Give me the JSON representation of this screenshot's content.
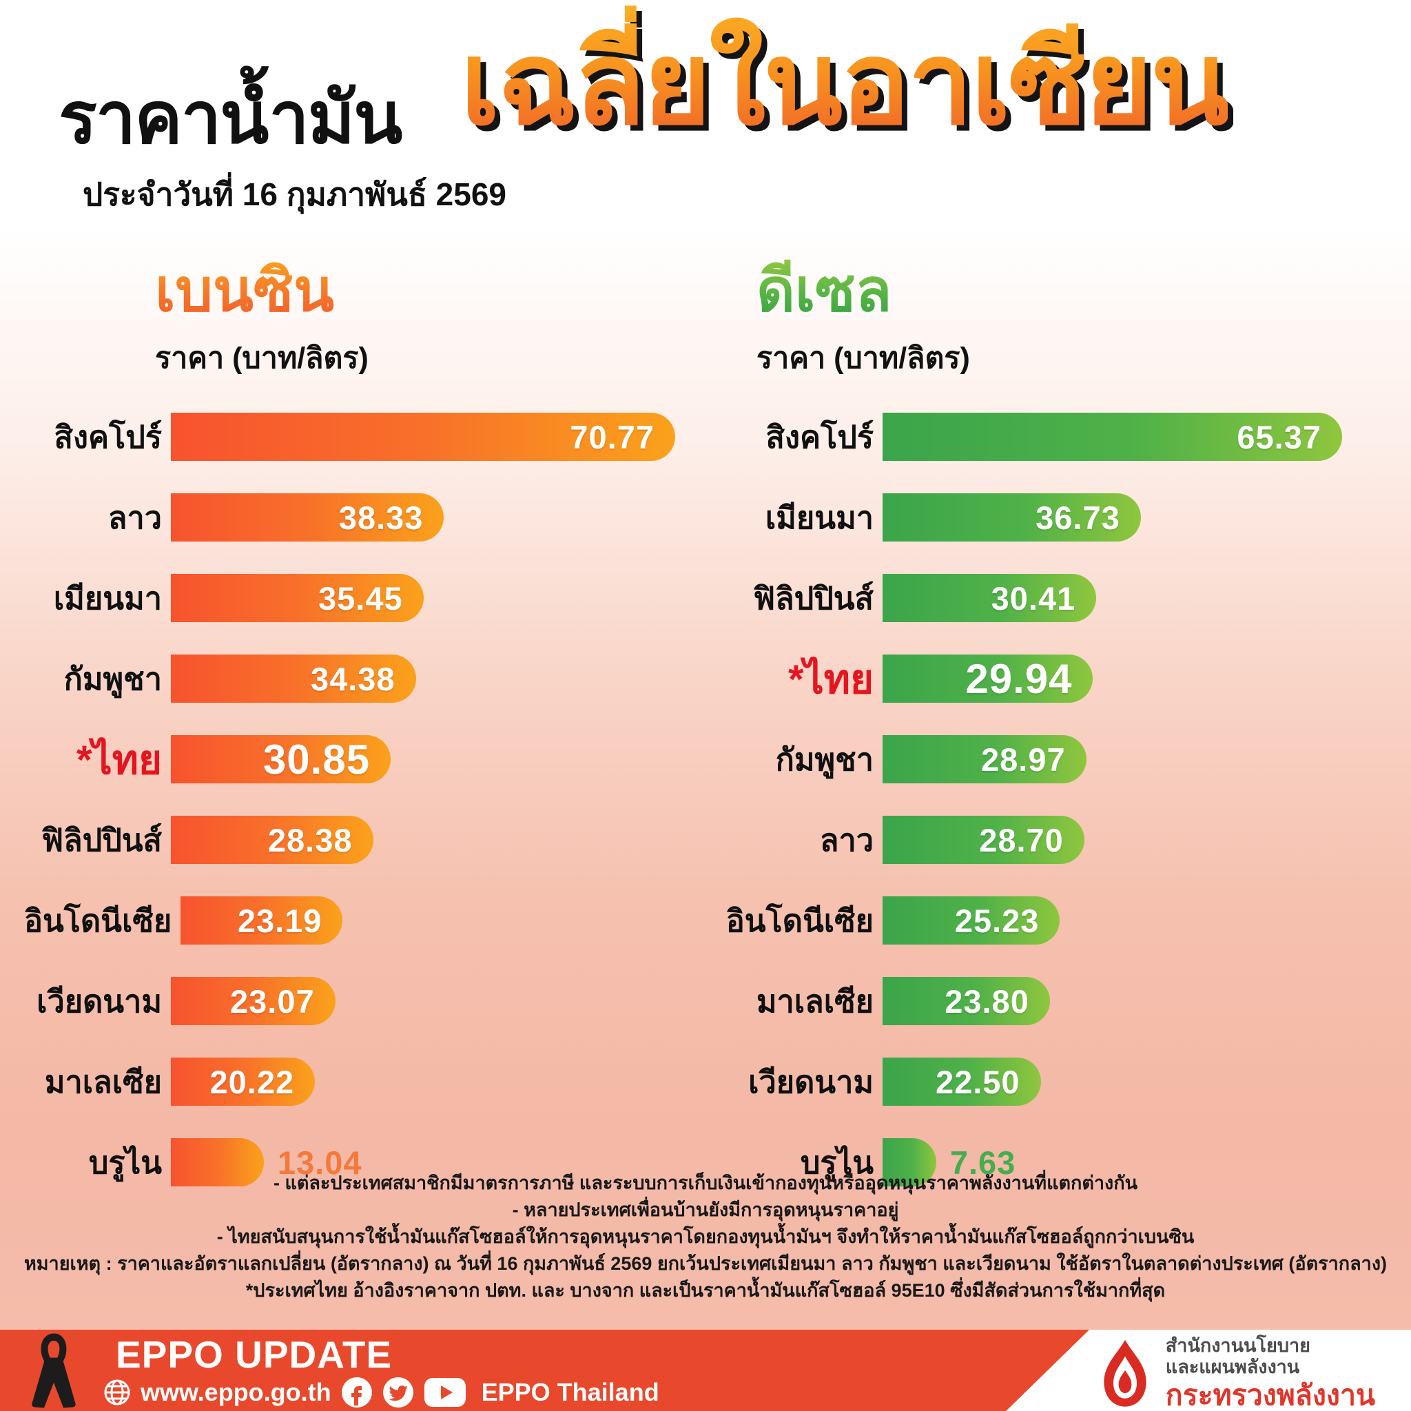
{
  "header": {
    "title_black": "ราคาน้ำมัน",
    "title_orange": "เฉลี่ยในอาเซียน",
    "date_line": "ประจำวันที่  16 กุมภาพันธ์ 2569"
  },
  "charts": [
    {
      "id": "benzine",
      "title": "เบนซิน",
      "unit_label": "ราคา (บาท/ลิตร)",
      "max": 70.77,
      "bar_color_start": "#F7532E",
      "bar_color_end": "#FAA21B",
      "rows": [
        {
          "country": "สิงคโปร์",
          "value": "70.77"
        },
        {
          "country": "ลาว",
          "value": "38.33"
        },
        {
          "country": "เมียนมา",
          "value": "35.45"
        },
        {
          "country": "กัมพูชา",
          "value": "34.38"
        },
        {
          "country": "*ไทย",
          "value": "30.85",
          "highlight": true
        },
        {
          "country": "ฟิลิปปินส์",
          "value": "28.38"
        },
        {
          "country": "อินโดนีเซีย",
          "value": "23.19"
        },
        {
          "country": "เวียดนาม",
          "value": "23.07"
        },
        {
          "country": "มาเลเซีย",
          "value": "20.22"
        },
        {
          "country": "บรูไน",
          "value": "13.04",
          "outside": true
        }
      ]
    },
    {
      "id": "diesel",
      "title": "ดีเซล",
      "unit_label": "ราคา (บาท/ลิตร)",
      "max": 65.37,
      "bar_color_start": "#3BA54B",
      "bar_color_end": "#8FC63E",
      "rows": [
        {
          "country": "สิงคโปร์",
          "value": "65.37"
        },
        {
          "country": "เมียนมา",
          "value": "36.73"
        },
        {
          "country": "ฟิลิปปินส์",
          "value": "30.41"
        },
        {
          "country": "*ไทย",
          "value": "29.94",
          "highlight": true
        },
        {
          "country": "กัมพูชา",
          "value": "28.97"
        },
        {
          "country": "ลาว",
          "value": "28.70"
        },
        {
          "country": "อินโดนีเซีย",
          "value": "25.23"
        },
        {
          "country": "มาเลเซีย",
          "value": "23.80"
        },
        {
          "country": "เวียดนาม",
          "value": "22.50"
        },
        {
          "country": "บรูไน",
          "value": "7.63",
          "outside": true
        }
      ]
    }
  ],
  "chart_data": [
    {
      "type": "bar",
      "orientation": "horizontal",
      "title": "เบนซิน",
      "xlabel": "ราคา (บาท/ลิตร)",
      "categories": [
        "สิงคโปร์",
        "ลาว",
        "เมียนมา",
        "กัมพูชา",
        "*ไทย",
        "ฟิลิปปินส์",
        "อินโดนีเซีย",
        "เวียดนาม",
        "มาเลเซีย",
        "บรูไน"
      ],
      "values": [
        70.77,
        38.33,
        35.45,
        34.38,
        30.85,
        28.38,
        23.19,
        23.07,
        20.22,
        13.04
      ],
      "highlight_category": "*ไทย",
      "xlim": [
        0,
        70.77
      ],
      "grid": false,
      "bar_color": "orange-gradient"
    },
    {
      "type": "bar",
      "orientation": "horizontal",
      "title": "ดีเซล",
      "xlabel": "ราคา (บาท/ลิตร)",
      "categories": [
        "สิงคโปร์",
        "เมียนมา",
        "ฟิลิปปินส์",
        "*ไทย",
        "กัมพูชา",
        "ลาว",
        "อินโดนีเซีย",
        "มาเลเซีย",
        "เวียดนาม",
        "บรูไน"
      ],
      "values": [
        65.37,
        36.73,
        30.41,
        29.94,
        28.97,
        28.7,
        25.23,
        23.8,
        22.5,
        7.63
      ],
      "highlight_category": "*ไทย",
      "xlim": [
        0,
        65.37
      ],
      "grid": false,
      "bar_color": "green-gradient"
    }
  ],
  "notes": [
    "- แต่ละประเทศสมาชิกมีมาตรการภาษี และระบบการเก็บเงินเข้ากองทุนหรืออุดหนุนราคาพลังงานที่แตกต่างกัน",
    "- หลายประเทศเพื่อนบ้านยังมีการอุดหนุนราคาอยู่",
    "- ไทยสนับสนุนการใช้น้ำมันแก๊สโซฮอล์ให้การอุดหนุนราคาโดยกองทุนน้ำมันฯ จึงทำให้ราคาน้ำมันแก๊สโซฮอล์ถูกกว่าเบนซิน",
    "หมายเหตุ : ราคาและอัตราแลกเปลี่ยน (อัตรากลาง) ณ วันที่ 16 กุมภาพันธ์ 2569 ยกเว้นประเทศเมียนมา ลาว กัมพูชา และเวียดนาม ใช้อัตราในตลาดต่างประเทศ (อัตรากลาง)",
    "*ประเทศไทย อ้างอิงราคาจาก ปตท. และ บางจาก และเป็นราคาน้ำมันแก๊สโซฮอล์ 95E10 ซึ่งมีสัดส่วนการใช้มากที่สุด"
  ],
  "footer": {
    "brand": "EPPO UPDATE",
    "website": "www.eppo.go.th",
    "social_label": "EPPO Thailand",
    "bar_color": "#E8492C",
    "org_line1": "สำนักงานนโยบาย",
    "org_line2": "และแผนพลังงาน",
    "org_line3": "กระทรวงพลังงาน"
  }
}
